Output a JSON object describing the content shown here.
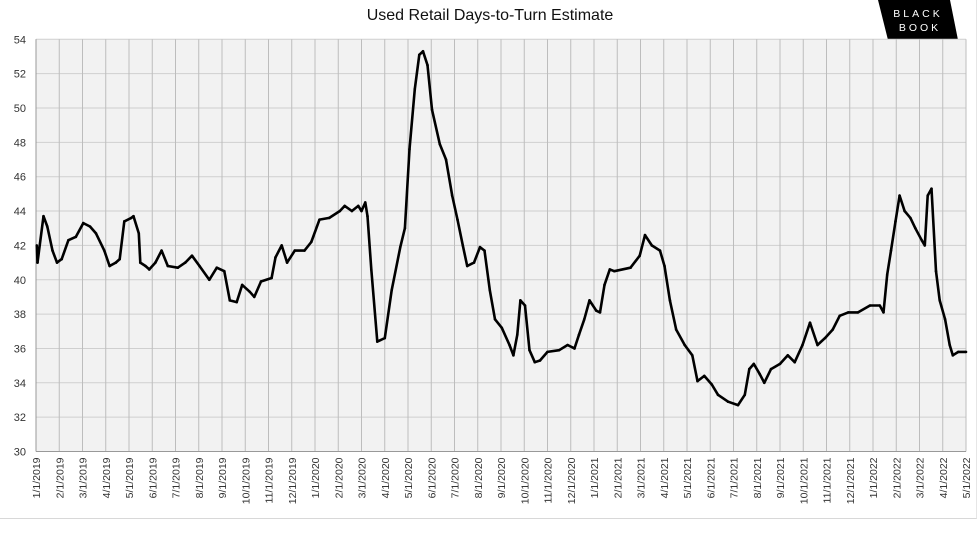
{
  "logo_text": "BLACK BOOK",
  "chart_data": {
    "type": "line",
    "title": "Used Retail Days-to-Turn Estimate",
    "xlabel": "",
    "ylabel": "",
    "ylim": [
      30,
      54
    ],
    "yticks": [
      30,
      32,
      34,
      36,
      38,
      40,
      42,
      44,
      46,
      48,
      50,
      52,
      54
    ],
    "xlim": [
      "2019-01-01",
      "2022-05-01"
    ],
    "xtick_labels": [
      "1/1/2019",
      "2/1/2019",
      "3/1/2019",
      "4/1/2019",
      "5/1/2019",
      "6/1/2019",
      "7/1/2019",
      "8/1/2019",
      "9/1/2019",
      "10/1/2019",
      "11/1/2019",
      "12/1/2019",
      "1/1/2020",
      "2/1/2020",
      "3/1/2020",
      "4/1/2020",
      "5/1/2020",
      "6/1/2020",
      "7/1/2020",
      "8/1/2020",
      "9/1/2020",
      "10/1/2020",
      "11/1/2020",
      "12/1/2020",
      "1/1/2021",
      "2/1/2021",
      "3/1/2021",
      "4/1/2021",
      "5/1/2021",
      "6/1/2021",
      "7/1/2021",
      "8/1/2021",
      "9/1/2021",
      "10/1/2021",
      "11/1/2021",
      "12/1/2021",
      "1/1/2022",
      "2/1/2022",
      "3/1/2022",
      "4/1/2022",
      "5/1/2022"
    ],
    "grid": true,
    "line_color": "#000000",
    "plot_background": "#f2f2f2",
    "series": [
      {
        "x": [
          "2019-01-02",
          "2019-01-03",
          "2019-01-11",
          "2019-01-16",
          "2019-01-23",
          "2019-01-29",
          "2019-02-04",
          "2019-02-12",
          "2019-02-21",
          "2019-03-02",
          "2019-03-11",
          "2019-03-19",
          "2019-03-30",
          "2019-04-06",
          "2019-04-14",
          "2019-04-19",
          "2019-04-25",
          "2019-05-04",
          "2019-05-07",
          "2019-05-14",
          "2019-05-16",
          "2019-05-23",
          "2019-05-28",
          "2019-06-05",
          "2019-06-13",
          "2019-06-21",
          "2019-07-04",
          "2019-07-14",
          "2019-07-23",
          "2019-08-02",
          "2019-08-15",
          "2019-08-25",
          "2019-09-04",
          "2019-09-11",
          "2019-09-20",
          "2019-09-27",
          "2019-10-07",
          "2019-10-13",
          "2019-10-22",
          "2019-11-05",
          "2019-11-10",
          "2019-11-18",
          "2019-11-25",
          "2019-12-05",
          "2019-12-18",
          "2019-12-27",
          "2020-01-07",
          "2020-01-20",
          "2020-02-03",
          "2020-02-09",
          "2020-02-18",
          "2020-02-26",
          "2020-03-01",
          "2020-03-06",
          "2020-03-09",
          "2020-03-14",
          "2020-03-22",
          "2020-04-01",
          "2020-04-10",
          "2020-04-21",
          "2020-04-27",
          "2020-05-03",
          "2020-05-10",
          "2020-05-16",
          "2020-05-21",
          "2020-05-27",
          "2020-06-02",
          "2020-06-12",
          "2020-06-20",
          "2020-06-28",
          "2020-07-05",
          "2020-07-12",
          "2020-07-18",
          "2020-07-27",
          "2020-08-04",
          "2020-08-10",
          "2020-08-17",
          "2020-08-24",
          "2020-09-02",
          "2020-09-12",
          "2020-09-17",
          "2020-09-22",
          "2020-09-26",
          "2020-10-02",
          "2020-10-08",
          "2020-10-15",
          "2020-10-22",
          "2020-11-01",
          "2020-11-16",
          "2020-11-27",
          "2020-12-06",
          "2020-12-12",
          "2020-12-19",
          "2020-12-26",
          "2021-01-04",
          "2021-01-09",
          "2021-01-15",
          "2021-01-22",
          "2021-01-28",
          "2021-02-17",
          "2021-02-28",
          "2021-03-07",
          "2021-03-16",
          "2021-03-27",
          "2021-04-02",
          "2021-04-09",
          "2021-04-17",
          "2021-04-28",
          "2021-05-08",
          "2021-05-15",
          "2021-05-24",
          "2021-06-03",
          "2021-06-11",
          "2021-06-24",
          "2021-07-07",
          "2021-07-16",
          "2021-07-22",
          "2021-07-28",
          "2021-08-05",
          "2021-08-11",
          "2021-08-20",
          "2021-09-01",
          "2021-09-11",
          "2021-09-20",
          "2021-09-30",
          "2021-10-10",
          "2021-10-20",
          "2021-10-30",
          "2021-11-09",
          "2021-11-18",
          "2021-11-29",
          "2021-12-12",
          "2021-12-28",
          "2022-01-10",
          "2022-01-15",
          "2022-01-20",
          "2022-01-25",
          "2022-01-31",
          "2022-02-05",
          "2022-02-11",
          "2022-02-18",
          "2022-02-24",
          "2022-03-04",
          "2022-03-08",
          "2022-03-12",
          "2022-03-17",
          "2022-03-23",
          "2022-03-28",
          "2022-04-04",
          "2022-04-10",
          "2022-04-14",
          "2022-04-21",
          "2022-05-01"
        ],
        "values": [
          42.0,
          41.0,
          43.7,
          43.1,
          41.7,
          41.0,
          41.2,
          42.3,
          42.5,
          43.3,
          43.1,
          42.7,
          41.7,
          40.8,
          41.0,
          41.2,
          43.4,
          43.6,
          43.7,
          42.7,
          41.0,
          40.8,
          40.6,
          41.0,
          41.7,
          40.8,
          40.7,
          41.0,
          41.4,
          40.8,
          40.0,
          40.7,
          40.5,
          38.8,
          38.7,
          39.7,
          39.3,
          39.0,
          39.9,
          40.1,
          41.3,
          42.0,
          41.0,
          41.7,
          41.7,
          42.2,
          43.5,
          43.6,
          44.0,
          44.3,
          44.0,
          44.3,
          44.0,
          44.5,
          43.7,
          40.6,
          36.4,
          36.6,
          39.4,
          41.9,
          43.0,
          47.6,
          51.1,
          53.1,
          53.3,
          52.5,
          49.9,
          47.9,
          47.0,
          44.9,
          43.5,
          42.0,
          40.8,
          41.0,
          41.9,
          41.7,
          39.4,
          37.7,
          37.2,
          36.2,
          35.6,
          36.8,
          38.8,
          38.5,
          35.9,
          35.2,
          35.3,
          35.8,
          35.9,
          36.2,
          36.0,
          36.8,
          37.7,
          38.8,
          38.2,
          38.1,
          39.7,
          40.6,
          40.5,
          40.7,
          41.4,
          42.6,
          42.0,
          41.7,
          40.8,
          38.8,
          37.1,
          36.2,
          35.6,
          34.1,
          34.4,
          33.9,
          33.3,
          32.9,
          32.7,
          33.3,
          34.8,
          35.1,
          34.5,
          34.0,
          34.8,
          35.1,
          35.6,
          35.2,
          36.2,
          37.5,
          36.2,
          36.6,
          37.1,
          37.9,
          38.1,
          38.1,
          38.5,
          38.5,
          38.1,
          40.3,
          41.7,
          43.4,
          44.9,
          44.0,
          43.6,
          43.0,
          42.3,
          42.0,
          44.9,
          45.3,
          40.5,
          38.8,
          37.7,
          36.2,
          35.6,
          35.8,
          35.8
        ]
      }
    ]
  }
}
